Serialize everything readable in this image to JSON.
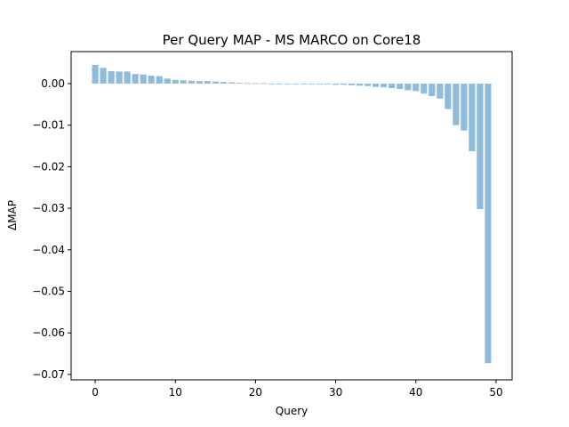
{
  "chart_data": {
    "type": "bar",
    "title": "Per Query MAP - MS MARCO on Core18",
    "xlabel": "Query",
    "ylabel": "ΔMAP",
    "x": [
      0,
      1,
      2,
      3,
      4,
      5,
      6,
      7,
      8,
      9,
      10,
      11,
      12,
      13,
      14,
      15,
      16,
      17,
      18,
      19,
      20,
      21,
      22,
      23,
      24,
      25,
      26,
      27,
      28,
      29,
      30,
      31,
      32,
      33,
      34,
      35,
      36,
      37,
      38,
      39,
      40,
      41,
      42,
      43,
      44,
      45,
      46,
      47,
      48,
      49
    ],
    "values": [
      0.0045,
      0.0038,
      0.003,
      0.0029,
      0.0029,
      0.0023,
      0.0022,
      0.0019,
      0.0018,
      0.0012,
      0.0009,
      0.0008,
      0.0007,
      0.0006,
      0.0006,
      0.0005,
      0.0004,
      0.0003,
      0.0002,
      0.0001,
      0.0001,
      0.0001,
      0.0,
      0.0,
      0.0,
      0.0,
      0.0,
      -0.0001,
      -0.0002,
      -0.0002,
      -0.0003,
      -0.0003,
      -0.0004,
      -0.0005,
      -0.0006,
      -0.0008,
      -0.0009,
      -0.0011,
      -0.0013,
      -0.0016,
      -0.0018,
      -0.0024,
      -0.003,
      -0.0036,
      -0.0061,
      -0.01,
      -0.0113,
      -0.0163,
      -0.0302,
      -0.0673
    ],
    "xlim": [
      -3,
      52
    ],
    "ylim": [
      -0.0713,
      0.0077
    ],
    "xticks": [
      0,
      10,
      20,
      30,
      40,
      50
    ],
    "yticks": [
      0.0,
      -0.01,
      -0.02,
      -0.03,
      -0.04,
      -0.05,
      -0.06,
      -0.07
    ],
    "ytick_labels": [
      "0.00",
      "−0.01",
      "−0.02",
      "−0.03",
      "−0.04",
      "−0.05",
      "−0.06",
      "−0.07"
    ],
    "bar_color": "#8fbcdb",
    "grid": false,
    "legend": "none"
  }
}
